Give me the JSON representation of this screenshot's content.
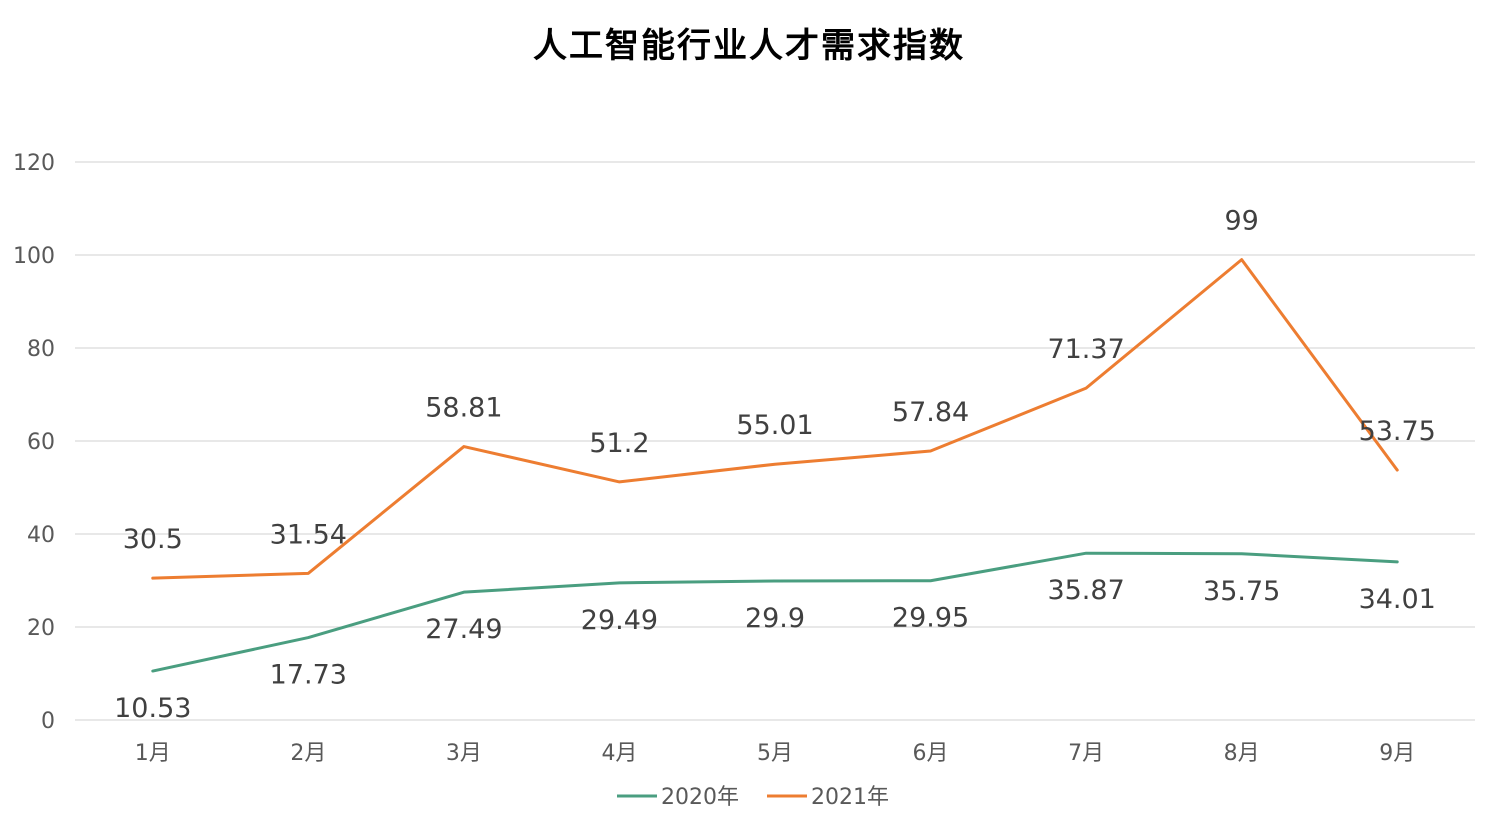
{
  "chart_data": {
    "type": "line",
    "title": "人工智能行业人才需求指数",
    "categories": [
      "1月",
      "2月",
      "3月",
      "4月",
      "5月",
      "6月",
      "7月",
      "8月",
      "9月"
    ],
    "ylim": [
      0,
      120
    ],
    "yticks": [
      0,
      20,
      40,
      60,
      80,
      100,
      120
    ],
    "grid": true,
    "legend_position": "bottom",
    "series": [
      {
        "name": "2020年",
        "color": "#4a9e80",
        "label_side": "below",
        "values": [
          10.53,
          17.73,
          27.49,
          29.49,
          29.9,
          29.95,
          35.87,
          35.75,
          34.01
        ]
      },
      {
        "name": "2021年",
        "color": "#ed7d31",
        "label_side": "above",
        "values": [
          30.5,
          31.54,
          58.81,
          51.2,
          55.01,
          57.84,
          71.37,
          99,
          53.75
        ]
      }
    ]
  }
}
